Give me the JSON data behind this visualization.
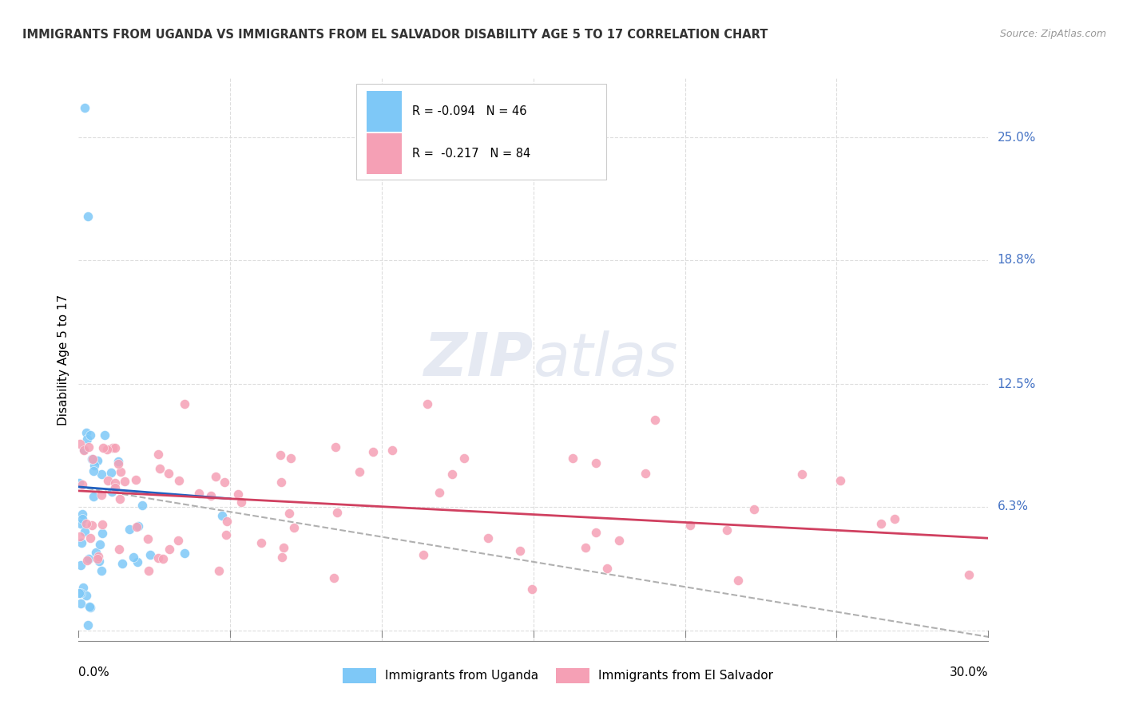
{
  "title": "IMMIGRANTS FROM UGANDA VS IMMIGRANTS FROM EL SALVADOR DISABILITY AGE 5 TO 17 CORRELATION CHART",
  "source": "Source: ZipAtlas.com",
  "ylabel": "Disability Age 5 to 17",
  "uganda_color": "#7ec8f7",
  "salvador_color": "#f5a0b5",
  "uganda_R": -0.094,
  "uganda_N": 46,
  "salvador_R": -0.217,
  "salvador_N": 84,
  "legend_label_uganda": "Immigrants from Uganda",
  "legend_label_salvador": "Immigrants from El Salvador",
  "watermark_1": "ZIP",
  "watermark_2": "atlas",
  "blue_line_color": "#2060c0",
  "pink_line_color": "#d04060",
  "dash_line_color": "#b0b0b0",
  "grid_color": "#dddddd",
  "right_label_color": "#4472c4",
  "ytick_vals": [
    0.0,
    0.063,
    0.125,
    0.188,
    0.25
  ],
  "ytick_labels": [
    "",
    "6.3%",
    "12.5%",
    "18.8%",
    "25.0%"
  ],
  "xmin": 0.0,
  "xmax": 0.3,
  "ymin": 0.0,
  "ymax": 0.275
}
